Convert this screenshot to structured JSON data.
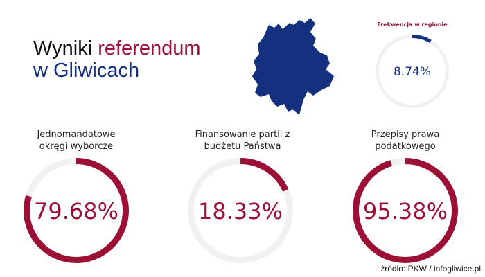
{
  "title": {
    "part1": "Wyniki ",
    "part2": "referendum",
    "part3": "w Gliwicach"
  },
  "colors": {
    "accent": "#9b1034",
    "navy": "#14307f",
    "track": "#f1f1f1"
  },
  "chart_data": [
    {
      "type": "gauge",
      "label": "Frekwencja w regionie",
      "value": 8.74,
      "value_text": "8.74%",
      "color": "#14307f"
    },
    {
      "type": "gauge",
      "label": "Jednomandatowe okręgi wyborcze",
      "label_lines": [
        "Jednomandatowe",
        "okręgi wyborcze"
      ],
      "value": 79.68,
      "value_text": "79.68%",
      "color": "#9b1034"
    },
    {
      "type": "gauge",
      "label": "Finansowanie partii z budżetu Państwa",
      "label_lines": [
        "Finansowanie partii z",
        "budżetu Państwa"
      ],
      "value": 18.33,
      "value_text": "18.33%",
      "color": "#9b1034"
    },
    {
      "type": "gauge",
      "label": "Przepisy prawa podatkowego",
      "label_lines": [
        "Przepisy prawa",
        "podatkowego"
      ],
      "value": 95.38,
      "value_text": "95.38%",
      "color": "#9b1034"
    }
  ],
  "source": "źródło: PKW / infogliwice.pl"
}
